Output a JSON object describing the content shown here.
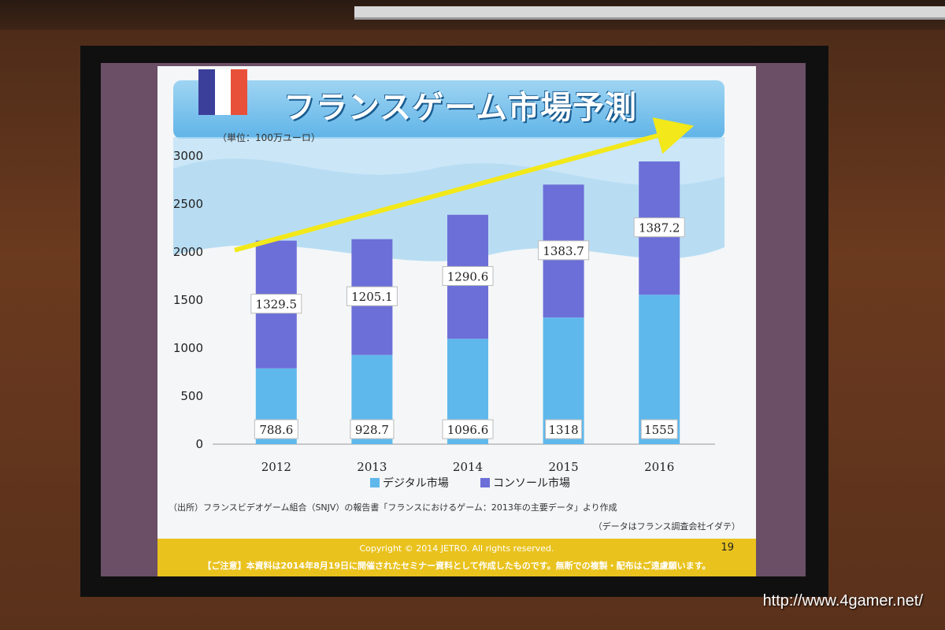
{
  "slide": {
    "title": "フランスゲーム市場予測",
    "unit_label": "（単位：100万ユーロ）",
    "source": "（出所）フランスビデオゲーム組合（SNJV）の報告書「フランスにおけるゲーム：2013年の主要データ」より作成",
    "credit": "（データはフランス調査会社イダテ）",
    "copyright": "Copyright © 2014 JETRO. All rights reserved.",
    "notice": "【ご注意】本資料は2014年8月19日に開催されたセミナー資料として作成したものです。無断での複製・配布はご遠慮願います。",
    "page_number": "19",
    "flag_colors": [
      "#3b3f9a",
      "#ffffff",
      "#e8503a"
    ]
  },
  "watermark": "http://www.4gamer.net/",
  "chart_data": {
    "type": "bar",
    "stacked": true,
    "categories": [
      "2012",
      "2013",
      "2014",
      "2015",
      "2016"
    ],
    "series": [
      {
        "name": "デジタル市場",
        "values": [
          788.6,
          928.7,
          1096.6,
          1318,
          1555
        ],
        "labels": [
          "788.6",
          "928.7",
          "1096.6",
          "1318",
          "1555"
        ],
        "color": "#5fb8ec"
      },
      {
        "name": "コンソール市場",
        "values": [
          1329.5,
          1205.1,
          1290.6,
          1383.7,
          1387.2
        ],
        "labels": [
          "1329.5",
          "1205.1",
          "1290.6",
          "1383.7",
          "1387.2"
        ],
        "color": "#6d6fd8"
      }
    ],
    "ylim": [
      0,
      3000
    ],
    "yticks": [
      "0",
      "500",
      "1000",
      "1500",
      "2000",
      "2500",
      "3000"
    ],
    "grid": false,
    "legend_position": "bottom",
    "trend_arrow_color": "#f2e81a"
  }
}
